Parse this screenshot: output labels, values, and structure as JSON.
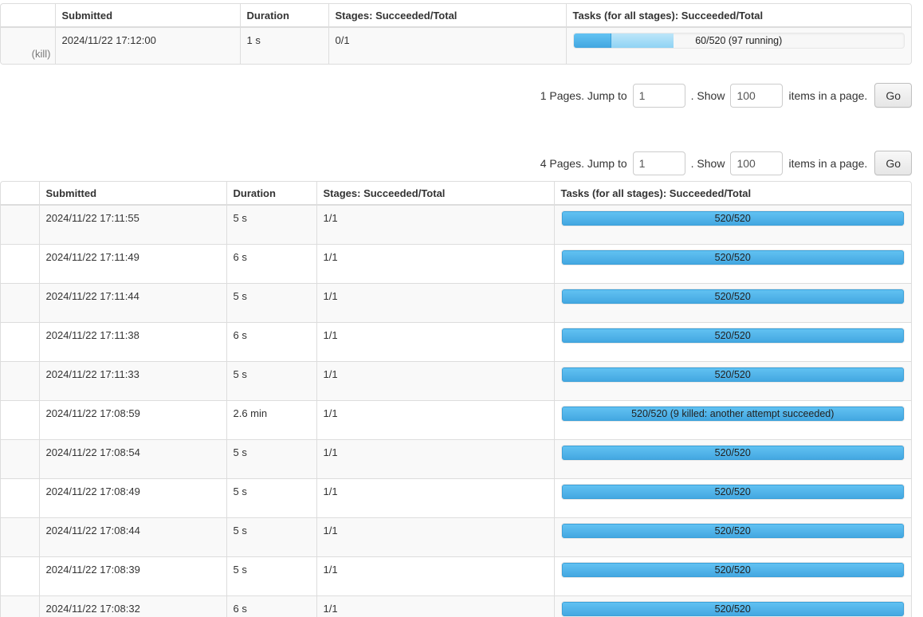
{
  "colors": {
    "bar_completed_top": "#63c3f3",
    "bar_completed_bottom": "#42a6e0",
    "bar_running_top": "#bde6f9",
    "bar_running_bottom": "#8fd3f4",
    "bar_track": "#f7f7f7",
    "row_stripe": "#f9f9f9",
    "table_border": "#dddddd"
  },
  "running_jobs_table": {
    "headers": {
      "col0": "",
      "submitted": "Submitted",
      "duration": "Duration",
      "stages": "Stages: Succeeded/Total",
      "tasks": "Tasks (for all stages): Succeeded/Total"
    },
    "row": {
      "kill": "(kill)",
      "submitted": "2024/11/22 17:12:00",
      "duration": "1 s",
      "stages": "0/1",
      "tasks_label": "60/520 (97 running)",
      "tasks_completed_pct": 11.5,
      "tasks_running_pct": 18.7
    }
  },
  "pager_running": {
    "pages": "1 Pages. Jump to",
    "jump_value": "1",
    "show_sep": ". Show",
    "show_value": "100",
    "tail": "items in a page.",
    "go": "Go"
  },
  "pager_completed": {
    "pages": "4 Pages. Jump to",
    "jump_value": "1",
    "show_sep": ". Show",
    "show_value": "100",
    "tail": "items in a page.",
    "go": "Go"
  },
  "completed_jobs_table": {
    "headers": {
      "col0": "",
      "submitted": "Submitted",
      "duration": "Duration",
      "stages": "Stages: Succeeded/Total",
      "tasks": "Tasks (for all stages): Succeeded/Total"
    },
    "rows": [
      {
        "submitted": "2024/11/22 17:11:55",
        "duration": "5 s",
        "stages": "1/1",
        "tasks_label": "520/520",
        "tasks_completed_pct": 100
      },
      {
        "submitted": "2024/11/22 17:11:49",
        "duration": "6 s",
        "stages": "1/1",
        "tasks_label": "520/520",
        "tasks_completed_pct": 100
      },
      {
        "submitted": "2024/11/22 17:11:44",
        "duration": "5 s",
        "stages": "1/1",
        "tasks_label": "520/520",
        "tasks_completed_pct": 100
      },
      {
        "submitted": "2024/11/22 17:11:38",
        "duration": "6 s",
        "stages": "1/1",
        "tasks_label": "520/520",
        "tasks_completed_pct": 100
      },
      {
        "submitted": "2024/11/22 17:11:33",
        "duration": "5 s",
        "stages": "1/1",
        "tasks_label": "520/520",
        "tasks_completed_pct": 100
      },
      {
        "submitted": "2024/11/22 17:08:59",
        "duration": "2.6 min",
        "stages": "1/1",
        "tasks_label": "520/520 (9 killed: another attempt succeeded)",
        "tasks_completed_pct": 100
      },
      {
        "submitted": "2024/11/22 17:08:54",
        "duration": "5 s",
        "stages": "1/1",
        "tasks_label": "520/520",
        "tasks_completed_pct": 100
      },
      {
        "submitted": "2024/11/22 17:08:49",
        "duration": "5 s",
        "stages": "1/1",
        "tasks_label": "520/520",
        "tasks_completed_pct": 100
      },
      {
        "submitted": "2024/11/22 17:08:44",
        "duration": "5 s",
        "stages": "1/1",
        "tasks_label": "520/520",
        "tasks_completed_pct": 100
      },
      {
        "submitted": "2024/11/22 17:08:39",
        "duration": "5 s",
        "stages": "1/1",
        "tasks_label": "520/520",
        "tasks_completed_pct": 100
      },
      {
        "submitted": "2024/11/22 17:08:32",
        "duration": "6 s",
        "stages": "1/1",
        "tasks_label": "520/520",
        "tasks_completed_pct": 100
      }
    ]
  }
}
